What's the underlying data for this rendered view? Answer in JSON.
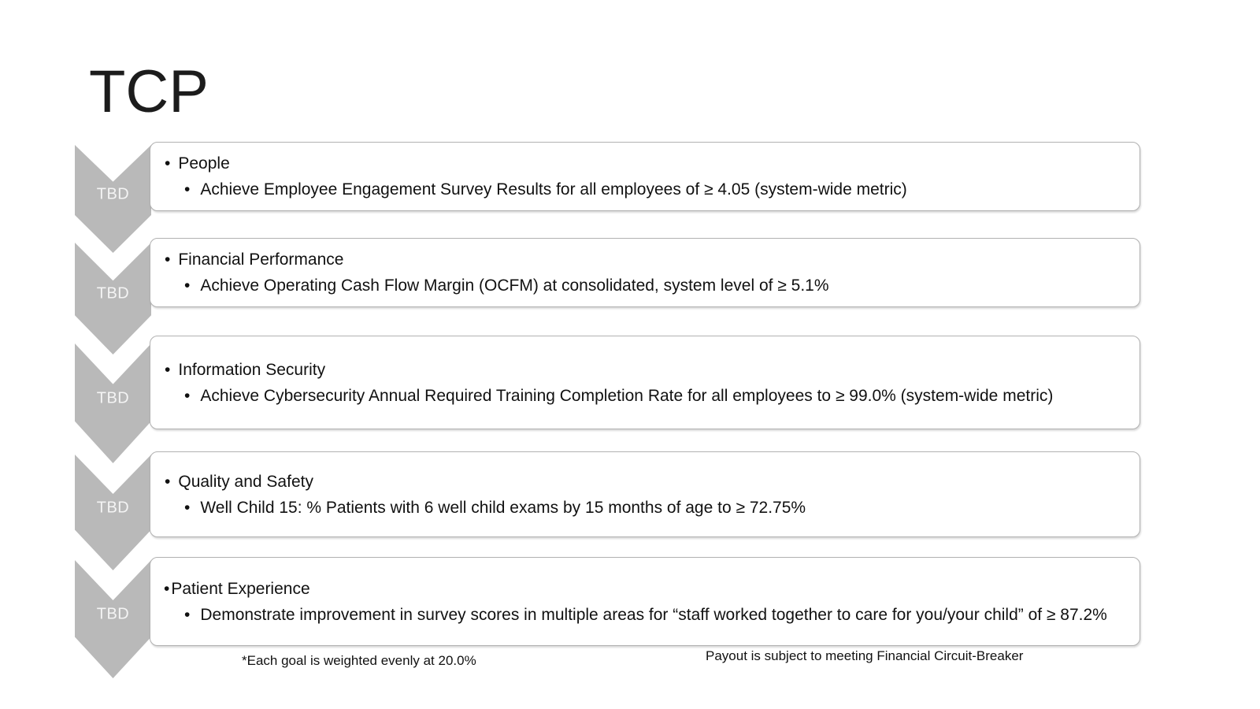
{
  "slide": {
    "title": "TCP",
    "bullet": "•",
    "rows": [
      {
        "badge": "TBD",
        "heading": "People",
        "details": [
          "Achieve Employee Engagement Survey Results for all employees of ≥ 4.05 (system-wide metric)"
        ]
      },
      {
        "badge": "TBD",
        "heading": "Financial Performance",
        "details": [
          "Achieve Operating Cash Flow Margin (OCFM) at consolidated, system level of ≥ 5.1%"
        ]
      },
      {
        "badge": "TBD",
        "heading": "Information Security",
        "details": [
          "Achieve Cybersecurity Annual Required Training Completion Rate for all employees to ≥ 99.0% (system-wide metric)"
        ]
      },
      {
        "badge": "TBD",
        "heading": "Quality and Safety",
        "details": [
          "Well Child 15: % Patients with 6 well child exams by 15 months of age to ≥ 72.75%"
        ]
      },
      {
        "badge": "TBD",
        "heading": "Patient Experience",
        "details": [
          "Demonstrate improvement in survey scores in multiple areas for “staff worked together to care for you/your child” of ≥ 87.2%"
        ]
      }
    ],
    "footnotes": {
      "weighting": "*Each goal is weighted evenly at 20.0%",
      "circuit_breaker": "Payout is subject to meeting Financial Circuit-Breaker"
    },
    "colors": {
      "chevron_fill": "#b9b9b9",
      "badge_text": "#f4f4f4",
      "box_border": "#b1b1b1",
      "body_text": "#111111"
    }
  }
}
